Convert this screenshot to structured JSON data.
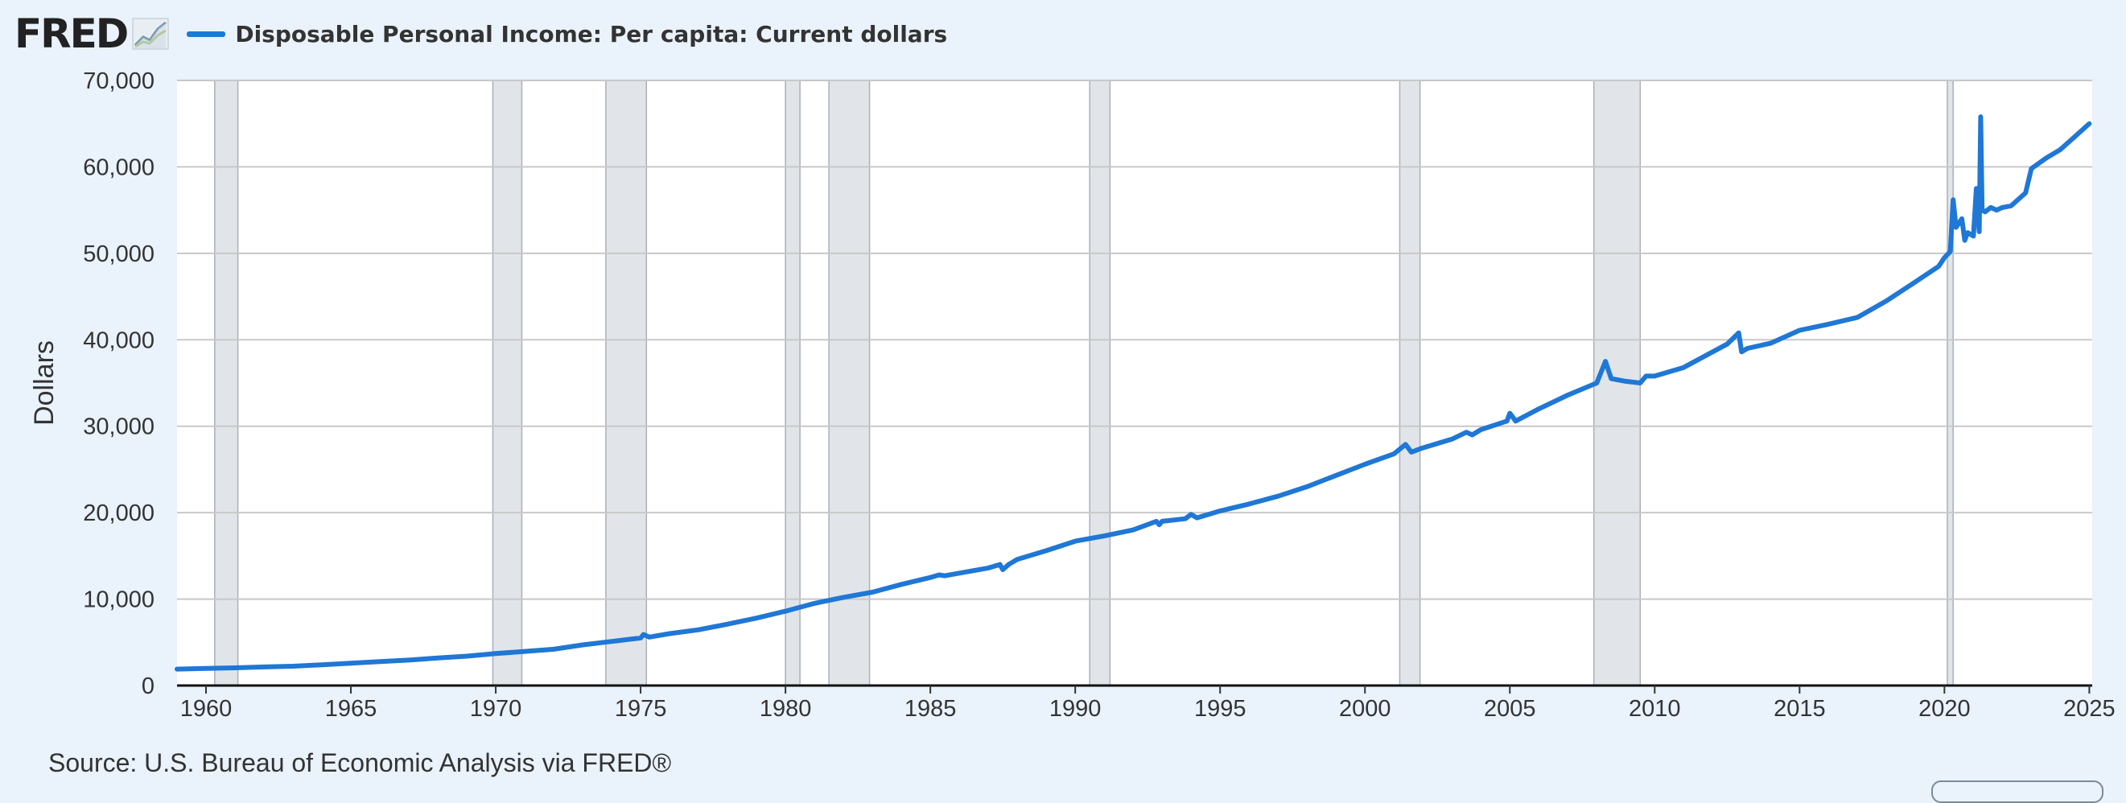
{
  "header": {
    "logo_text": "FRED",
    "logo_mark": "",
    "logo_icon": "trend-chart-icon",
    "legend_label": "Disposable Personal Income: Per capita: Current dollars"
  },
  "source": "Source: U.S. Bureau of Economic Analysis via FRED®",
  "colors": {
    "series": "#1f77d6",
    "recession": "#e1e5ea",
    "grid": "#c8c8c8",
    "plot_background": "#ffffff",
    "page_background": "#eaf2fb"
  },
  "chart_data": {
    "type": "line",
    "title": "",
    "xlabel": "",
    "ylabel": "Dollars",
    "xlim": [
      1959.0,
      2025.1
    ],
    "ylim": [
      0,
      70000
    ],
    "grid": true,
    "legend": "top-left",
    "yticks": [
      0,
      10000,
      20000,
      30000,
      40000,
      50000,
      60000,
      70000
    ],
    "ytick_labels": [
      "0",
      "10,000",
      "20,000",
      "30,000",
      "40,000",
      "50,000",
      "60,000",
      "70,000"
    ],
    "xticks": [
      1960,
      1965,
      1970,
      1975,
      1980,
      1985,
      1990,
      1995,
      2000,
      2005,
      2010,
      2015,
      2020,
      2025
    ],
    "xtick_labels": [
      "1960",
      "1965",
      "1970",
      "1975",
      "1980",
      "1985",
      "1990",
      "1995",
      "2000",
      "2005",
      "2010",
      "2015",
      "2020",
      "2025"
    ],
    "recessions": [
      [
        1960.3,
        1961.1
      ],
      [
        1969.9,
        1970.9
      ],
      [
        1973.8,
        1975.2
      ],
      [
        1980.0,
        1980.5
      ],
      [
        1981.5,
        1982.9
      ],
      [
        1990.5,
        1991.2
      ],
      [
        2001.2,
        2001.9
      ],
      [
        2007.9,
        2009.5
      ],
      [
        2020.1,
        2020.3
      ]
    ],
    "series": [
      {
        "name": "Disposable Personal Income: Per capita: Current dollars",
        "x": [
          1959.0,
          1960.0,
          1961.0,
          1962.0,
          1963.0,
          1964.0,
          1965.0,
          1966.0,
          1967.0,
          1968.0,
          1969.0,
          1970.0,
          1971.0,
          1972.0,
          1973.0,
          1974.0,
          1975.0,
          1975.1,
          1975.3,
          1976.0,
          1977.0,
          1978.0,
          1979.0,
          1980.0,
          1981.0,
          1982.0,
          1983.0,
          1984.0,
          1985.0,
          1985.3,
          1985.5,
          1986.0,
          1987.0,
          1987.4,
          1987.5,
          1987.7,
          1988.0,
          1989.0,
          1990.0,
          1991.0,
          1992.0,
          1992.8,
          1992.9,
          1993.0,
          1993.8,
          1994.0,
          1994.2,
          1995.0,
          1996.0,
          1997.0,
          1998.0,
          1999.0,
          2000.0,
          2001.0,
          2001.4,
          2001.6,
          2002.0,
          2003.0,
          2003.5,
          2003.7,
          2004.0,
          2004.9,
          2005.0,
          2005.2,
          2006.0,
          2007.0,
          2008.0,
          2008.3,
          2008.5,
          2009.0,
          2009.5,
          2009.7,
          2010.0,
          2011.0,
          2012.0,
          2012.5,
          2012.9,
          2013.0,
          2013.2,
          2014.0,
          2015.0,
          2016.0,
          2017.0,
          2018.0,
          2019.0,
          2019.8,
          2020.0,
          2020.2,
          2020.3,
          2020.4,
          2020.6,
          2020.7,
          2020.8,
          2021.0,
          2021.1,
          2021.2,
          2021.25,
          2021.3,
          2021.4,
          2021.6,
          2021.8,
          2022.0,
          2022.3,
          2022.8,
          2023.0,
          2023.5,
          2024.0,
          2024.5,
          2025.0
        ],
        "y": [
          1900,
          1980,
          2050,
          2150,
          2230,
          2400,
          2580,
          2760,
          2940,
          3180,
          3400,
          3700,
          3950,
          4200,
          4700,
          5100,
          5500,
          5900,
          5600,
          6000,
          6450,
          7100,
          7800,
          8600,
          9500,
          10200,
          10800,
          11700,
          12500,
          12800,
          12700,
          13000,
          13600,
          14000,
          13400,
          14000,
          14600,
          15600,
          16700,
          17300,
          18000,
          19000,
          18600,
          19000,
          19300,
          19800,
          19400,
          20200,
          21000,
          21900,
          23000,
          24300,
          25600,
          26800,
          27900,
          27000,
          27500,
          28500,
          29300,
          29000,
          29600,
          30600,
          31500,
          30600,
          32000,
          33600,
          35000,
          37500,
          35500,
          35200,
          35000,
          35800,
          35800,
          36800,
          38600,
          39500,
          40800,
          38600,
          39000,
          39600,
          41100,
          41800,
          42600,
          44500,
          46700,
          48500,
          49500,
          50200,
          56200,
          53000,
          54000,
          51500,
          52400,
          52000,
          57500,
          52500,
          65800,
          55000,
          54800,
          55300,
          55000,
          55300,
          55500,
          57000,
          59800,
          61000,
          62000,
          63500,
          65000
        ]
      }
    ]
  }
}
